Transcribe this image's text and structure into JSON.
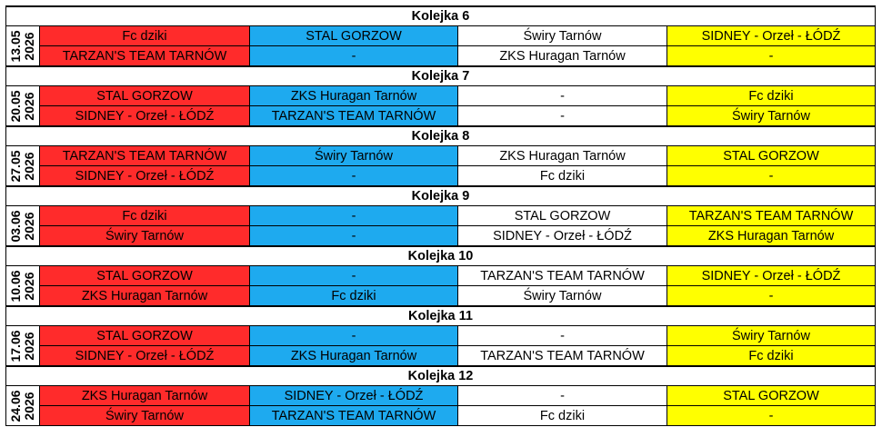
{
  "colors": {
    "column_1": "#ff2b2b",
    "column_2": "#1eaaef",
    "column_3": "#ffffff",
    "column_4": "#ffff00"
  },
  "rounds": [
    {
      "title": "Kolejka 6",
      "date": "13.05",
      "year": "2026",
      "rows": [
        [
          "Fc dziki",
          "STAL GORZOW",
          "Świry Tarnów",
          "SIDNEY - Orzeł - ŁÓDŹ"
        ],
        [
          "TARZAN'S TEAM TARNÓW",
          "-",
          "ZKS Huragan Tarnów",
          "-"
        ]
      ]
    },
    {
      "title": "Kolejka 7",
      "date": "20.05",
      "year": "2026",
      "rows": [
        [
          "STAL GORZOW",
          "ZKS Huragan Tarnów",
          "-",
          "Fc dziki"
        ],
        [
          "SIDNEY - Orzeł - ŁÓDŹ",
          "TARZAN'S TEAM TARNÓW",
          "-",
          "Świry Tarnów"
        ]
      ]
    },
    {
      "title": "Kolejka 8",
      "date": "27.05",
      "year": "2026",
      "rows": [
        [
          "TARZAN'S TEAM TARNÓW",
          "Świry Tarnów",
          "ZKS Huragan Tarnów",
          "STAL GORZOW"
        ],
        [
          "SIDNEY - Orzeł - ŁÓDŹ",
          "-",
          "Fc dziki",
          "-"
        ]
      ]
    },
    {
      "title": "Kolejka 9",
      "date": "03.06",
      "year": "2026",
      "rows": [
        [
          "Fc dziki",
          "-",
          "STAL GORZOW",
          "TARZAN'S TEAM TARNÓW"
        ],
        [
          "Świry Tarnów",
          "-",
          "SIDNEY - Orzeł - ŁÓDŹ",
          "ZKS Huragan Tarnów"
        ]
      ]
    },
    {
      "title": "Kolejka 10",
      "date": "10.06",
      "year": "2026",
      "rows": [
        [
          "STAL GORZOW",
          "-",
          "TARZAN'S TEAM TARNÓW",
          "SIDNEY - Orzeł - ŁÓDŹ"
        ],
        [
          "ZKS Huragan Tarnów",
          "Fc dziki",
          "Świry Tarnów",
          "-"
        ]
      ]
    },
    {
      "title": "Kolejka 11",
      "date": "17.06",
      "year": "2026",
      "rows": [
        [
          "STAL GORZOW",
          "-",
          "-",
          "Świry Tarnów"
        ],
        [
          "SIDNEY - Orzeł - ŁÓDŹ",
          "ZKS Huragan Tarnów",
          "TARZAN'S TEAM TARNÓW",
          "Fc dziki"
        ]
      ]
    },
    {
      "title": "Kolejka 12",
      "date": "24.06",
      "year": "2026",
      "rows": [
        [
          "ZKS Huragan Tarnów",
          "SIDNEY - Orzeł - ŁÓDŹ",
          "-",
          "STAL GORZOW"
        ],
        [
          "Świry Tarnów",
          "TARZAN'S TEAM TARNÓW",
          "Fc dziki",
          "-"
        ]
      ]
    }
  ]
}
